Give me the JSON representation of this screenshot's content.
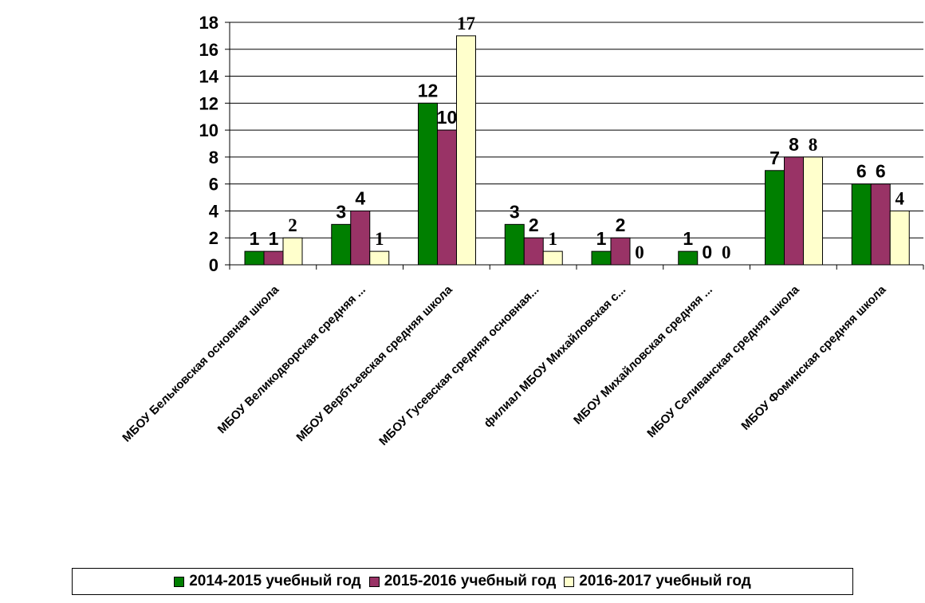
{
  "chart_data": {
    "type": "bar",
    "categories": [
      "МБОУ Бельковская основная школа",
      "МБОУ Великодворская средняя ...",
      "МБОУ Вербтьевская средняя школа",
      "МБОУ Гусевская средняя основная...",
      "филиал МБОУ Михайловская с...",
      "МБОУ Михайловская средняя ...",
      "МБОУ Селиванская средняя школа",
      "МБОУ Фоминская средняя школа"
    ],
    "series": [
      {
        "name": "2014-2015 учебный год",
        "values": [
          1,
          3,
          12,
          3,
          1,
          1,
          7,
          6
        ],
        "color": "#007f00",
        "value_labels": [
          "1",
          "3",
          "12",
          "3",
          "1",
          "1",
          "7",
          "6"
        ]
      },
      {
        "name": "2015-2016 учебный год",
        "values": [
          1,
          4,
          10,
          2,
          2,
          0,
          8,
          6
        ],
        "color": "#993366",
        "value_labels": [
          "1",
          "4",
          "10",
          "2",
          "2",
          "0",
          "8",
          "6"
        ]
      },
      {
        "name": "2016-2017 учебный год",
        "values": [
          2,
          1,
          17,
          1,
          0,
          0,
          8,
          4
        ],
        "color": "#ffffcc",
        "value_labels": [
          "2",
          "1",
          "17",
          "1",
          "0",
          "0",
          "8",
          "4"
        ]
      }
    ],
    "yticks": [
      "0",
      "2",
      "4",
      "6",
      "8",
      "10",
      "12",
      "14",
      "16",
      "18"
    ],
    "ylim": [
      0,
      18
    ],
    "grid": true,
    "legend_position": "bottom"
  }
}
